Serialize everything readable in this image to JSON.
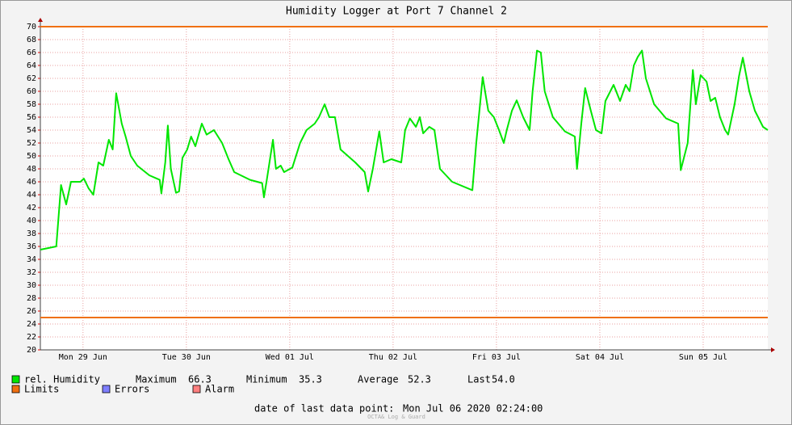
{
  "chart_data": {
    "type": "line",
    "title": "Humidity Logger at Port 7 Channel 2",
    "xlim": [
      2.1,
      171
    ],
    "xticks": [
      {
        "value": 12,
        "label": "Mon 29 Jun"
      },
      {
        "value": 36,
        "label": "Tue 30 Jun"
      },
      {
        "value": 60,
        "label": "Wed 01 Jul"
      },
      {
        "value": 84,
        "label": "Thu 02 Jul"
      },
      {
        "value": 108,
        "label": "Fri 03 Jul"
      },
      {
        "value": 132,
        "label": "Sat 04 Jul"
      },
      {
        "value": 156,
        "label": "Sun 05 Jul"
      }
    ],
    "ylim": [
      20,
      70
    ],
    "yticks": [
      20,
      22,
      24,
      26,
      28,
      30,
      32,
      34,
      36,
      38,
      40,
      42,
      44,
      46,
      48,
      50,
      52,
      54,
      56,
      58,
      60,
      62,
      64,
      66,
      68,
      70
    ],
    "grid": true,
    "series": [
      {
        "name": "rel. Humidity",
        "color": "#00e600",
        "x": [
          2.1,
          5.8,
          6.9,
          8.1,
          9.2,
          11.4,
          12.2,
          13.3,
          14.4,
          15.6,
          16.7,
          18.0,
          18.9,
          19.7,
          21.0,
          21.9,
          23.1,
          24.6,
          27.4,
          29.8,
          30.2,
          31.1,
          31.7,
          32.4,
          33.6,
          34.3,
          35.1,
          36.2,
          37.1,
          38.1,
          39.6,
          40.7,
          42.4,
          44.3,
          45.8,
          47.1,
          50.8,
          53.6,
          54.0,
          54.6,
          56.1,
          56.8,
          57.9,
          58.7,
          60.6,
          62.4,
          63.9,
          65.8,
          66.8,
          68.1,
          69.2,
          70.5,
          71.8,
          75.2,
          77.4,
          78.2,
          79.3,
          80.8,
          81.8,
          83.6,
          85.9,
          86.8,
          87.9,
          89.3,
          90.2,
          91.0,
          92.4,
          93.6,
          94.9,
          97.7,
          102.4,
          103.3,
          104.8,
          106.1,
          107.4,
          108.6,
          109.7,
          110.4,
          111.6,
          112.7,
          114.2,
          115.7,
          116.4,
          117.4,
          118.3,
          119.2,
          121.1,
          123.9,
          126.2,
          126.7,
          127.7,
          128.6,
          129.9,
          131.1,
          132.4,
          133.3,
          135.2,
          136.7,
          138.0,
          138.9,
          139.9,
          140.8,
          141.8,
          142.7,
          144.6,
          147.4,
          150.2,
          150.8,
          152.4,
          153.6,
          154.3,
          155.4,
          156.8,
          157.7,
          158.8,
          159.9,
          161.1,
          161.8,
          163.3,
          164.3,
          165.2,
          166.7,
          168.0,
          169.9,
          171.0
        ],
        "values": [
          35.5,
          36,
          45.5,
          42.5,
          46,
          46,
          46.5,
          45,
          44,
          49,
          48.5,
          52.5,
          51,
          59.7,
          55,
          53,
          50,
          48.5,
          47,
          46.3,
          44.2,
          49,
          54.7,
          48,
          44.3,
          44.5,
          49.7,
          51,
          53,
          51.5,
          55,
          53.3,
          54,
          52,
          49.5,
          47.5,
          46.3,
          45.8,
          43.6,
          46,
          52.5,
          48,
          48.5,
          47.5,
          48.2,
          52,
          54,
          55,
          56,
          58,
          56,
          56,
          51,
          49,
          47.5,
          44.5,
          48,
          53.8,
          49,
          49.5,
          49,
          54,
          55.8,
          54.5,
          56,
          53.5,
          54.5,
          54,
          48,
          46,
          44.7,
          52,
          62.2,
          57,
          56,
          54,
          52,
          54,
          57,
          58.6,
          56,
          54,
          60,
          66.3,
          66,
          60,
          56,
          53.8,
          53,
          48,
          55,
          60.5,
          57,
          54,
          53.5,
          58.5,
          61,
          58.5,
          61,
          60,
          64,
          65.3,
          66.3,
          62,
          58,
          55.8,
          55,
          47.8,
          52,
          63.3,
          58,
          62.5,
          61.5,
          58.5,
          59,
          56,
          54,
          53.3,
          58,
          62.3,
          65.2,
          60,
          57,
          54.5,
          54
        ]
      }
    ],
    "limits": {
      "name": "Limits",
      "color": "#f07010",
      "values": [
        70,
        25
      ]
    },
    "errors": {
      "name": "Errors",
      "color": "#7f7fff"
    },
    "alarm": {
      "name": "Alarm",
      "color": "#ff7f7f"
    },
    "stats": [
      {
        "name": "Maximum",
        "value": "66.3"
      },
      {
        "name": "Minimum",
        "value": "35.3"
      },
      {
        "name": "Average",
        "value": "52.3"
      },
      {
        "name": "Last",
        "value": "54.0"
      }
    ],
    "footer": {
      "label": "date of last data point:",
      "value": "Mon Jul 06 2020 02:24:00"
    },
    "watermark": "OCTA& Log & Guard"
  }
}
